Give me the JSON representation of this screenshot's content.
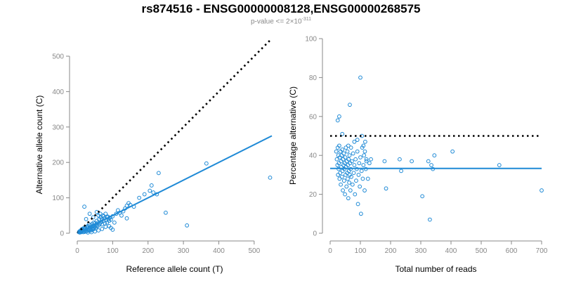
{
  "header": {
    "title": "rs874516 - ENSG00000008128,ENSG00000268575",
    "subtitle_prefix": "p-value <= 2×10",
    "subtitle_exp": "-311"
  },
  "colors": {
    "points": "#1f8ad6",
    "fit": "#1f8ad6",
    "reference": "#000000",
    "axis": "#888888"
  },
  "chart_data": [
    {
      "type": "scatter",
      "xlabel": "Reference allele count (T)",
      "ylabel": "Alternative allele count (C)",
      "xlim": [
        0,
        550
      ],
      "ylim": [
        0,
        500
      ],
      "xticks": [
        0,
        100,
        200,
        300,
        400,
        500
      ],
      "yticks": [
        0,
        100,
        200,
        300,
        400,
        500
      ],
      "reference_line": {
        "style": "dotted",
        "x": [
          0,
          550
        ],
        "y": [
          0,
          550
        ]
      },
      "fit_line": {
        "style": "solid",
        "x": [
          0,
          550
        ],
        "y": [
          0,
          275
        ]
      },
      "points": [
        [
          5,
          3
        ],
        [
          6,
          5
        ],
        [
          7,
          2
        ],
        [
          8,
          6
        ],
        [
          9,
          4
        ],
        [
          10,
          8
        ],
        [
          11,
          3
        ],
        [
          12,
          10
        ],
        [
          13,
          5
        ],
        [
          14,
          12
        ],
        [
          15,
          7
        ],
        [
          16,
          9
        ],
        [
          17,
          3
        ],
        [
          18,
          14
        ],
        [
          19,
          6
        ],
        [
          20,
          11
        ],
        [
          21,
          4
        ],
        [
          22,
          16
        ],
        [
          23,
          8
        ],
        [
          24,
          13
        ],
        [
          25,
          5
        ],
        [
          26,
          18
        ],
        [
          27,
          10
        ],
        [
          28,
          6
        ],
        [
          29,
          15
        ],
        [
          30,
          20
        ],
        [
          31,
          9
        ],
        [
          32,
          12
        ],
        [
          33,
          25
        ],
        [
          34,
          7
        ],
        [
          35,
          16
        ],
        [
          36,
          11
        ],
        [
          37,
          22
        ],
        [
          38,
          14
        ],
        [
          39,
          8
        ],
        [
          40,
          18
        ],
        [
          41,
          13
        ],
        [
          42,
          26
        ],
        [
          43,
          10
        ],
        [
          44,
          20
        ],
        [
          45,
          15
        ],
        [
          46,
          30
        ],
        [
          47,
          12
        ],
        [
          48,
          22
        ],
        [
          49,
          17
        ],
        [
          50,
          28
        ],
        [
          52,
          14
        ],
        [
          54,
          24
        ],
        [
          55,
          35
        ],
        [
          56,
          19
        ],
        [
          58,
          30
        ],
        [
          60,
          22
        ],
        [
          62,
          40
        ],
        [
          64,
          27
        ],
        [
          66,
          45
        ],
        [
          68,
          32
        ],
        [
          70,
          25
        ],
        [
          72,
          50
        ],
        [
          74,
          35
        ],
        [
          76,
          42
        ],
        [
          78,
          28
        ],
        [
          80,
          55
        ],
        [
          82,
          38
        ],
        [
          84,
          30
        ],
        [
          86,
          47
        ],
        [
          88,
          40
        ],
        [
          90,
          35
        ],
        [
          92,
          44
        ],
        [
          95,
          38
        ],
        [
          100,
          48
        ],
        [
          105,
          30
        ],
        [
          110,
          55
        ],
        [
          115,
          65
        ],
        [
          120,
          58
        ],
        [
          125,
          50
        ],
        [
          130,
          62
        ],
        [
          135,
          70
        ],
        [
          140,
          78
        ],
        [
          145,
          85
        ],
        [
          150,
          80
        ],
        [
          20,
          75
        ],
        [
          25,
          40
        ],
        [
          35,
          55
        ],
        [
          45,
          45
        ],
        [
          55,
          60
        ],
        [
          60,
          50
        ],
        [
          65,
          55
        ],
        [
          70,
          40
        ],
        [
          75,
          48
        ],
        [
          85,
          45
        ],
        [
          90,
          20
        ],
        [
          95,
          15
        ],
        [
          100,
          10
        ],
        [
          50,
          5
        ],
        [
          40,
          3
        ],
        [
          30,
          2
        ],
        [
          60,
          8
        ],
        [
          70,
          12
        ],
        [
          80,
          18
        ],
        [
          140,
          42
        ],
        [
          160,
          75
        ],
        [
          175,
          100
        ],
        [
          190,
          110
        ],
        [
          205,
          120
        ],
        [
          210,
          135
        ],
        [
          215,
          115
        ],
        [
          225,
          110
        ],
        [
          230,
          170
        ],
        [
          250,
          58
        ],
        [
          310,
          22
        ],
        [
          365,
          197
        ],
        [
          545,
          157
        ]
      ]
    },
    {
      "type": "scatter",
      "xlabel": "Total number of reads",
      "ylabel": "Percentage alternative (C)",
      "xlim": [
        0,
        700
      ],
      "ylim": [
        0,
        100
      ],
      "xticks": [
        0,
        100,
        200,
        300,
        400,
        500,
        600,
        700
      ],
      "yticks": [
        0,
        20,
        40,
        60,
        80,
        100
      ],
      "reference_line": {
        "style": "dotted",
        "x": [
          0,
          700
        ],
        "y": [
          50,
          50
        ]
      },
      "fit_line": {
        "style": "solid",
        "x": [
          0,
          700
        ],
        "y": [
          33.3,
          33.3
        ]
      },
      "points": [
        [
          20,
          42
        ],
        [
          22,
          38
        ],
        [
          24,
          35
        ],
        [
          25,
          44
        ],
        [
          26,
          30
        ],
        [
          27,
          40
        ],
        [
          28,
          33
        ],
        [
          29,
          36
        ],
        [
          30,
          45
        ],
        [
          31,
          28
        ],
        [
          32,
          39
        ],
        [
          33,
          31
        ],
        [
          34,
          42
        ],
        [
          35,
          25
        ],
        [
          36,
          37
        ],
        [
          37,
          34
        ],
        [
          38,
          40
        ],
        [
          39,
          29
        ],
        [
          40,
          43
        ],
        [
          41,
          32
        ],
        [
          42,
          22
        ],
        [
          43,
          38
        ],
        [
          44,
          35
        ],
        [
          45,
          41
        ],
        [
          46,
          27
        ],
        [
          47,
          33
        ],
        [
          48,
          36
        ],
        [
          49,
          20
        ],
        [
          50,
          39
        ],
        [
          51,
          30
        ],
        [
          52,
          44
        ],
        [
          53,
          34
        ],
        [
          54,
          24
        ],
        [
          55,
          37
        ],
        [
          56,
          31
        ],
        [
          57,
          42
        ],
        [
          58,
          28
        ],
        [
          59,
          35
        ],
        [
          60,
          18
        ],
        [
          61,
          38
        ],
        [
          62,
          32
        ],
        [
          63,
          26
        ],
        [
          64,
          40
        ],
        [
          65,
          30
        ],
        [
          66,
          36
        ],
        [
          67,
          22
        ],
        [
          68,
          33
        ],
        [
          69,
          44
        ],
        [
          70,
          29
        ],
        [
          72,
          37
        ],
        [
          74,
          25
        ],
        [
          76,
          41
        ],
        [
          78,
          31
        ],
        [
          80,
          35
        ],
        [
          82,
          20
        ],
        [
          84,
          38
        ],
        [
          86,
          27
        ],
        [
          88,
          33
        ],
        [
          90,
          42
        ],
        [
          92,
          15
        ],
        [
          94,
          30
        ],
        [
          96,
          36
        ],
        [
          98,
          24
        ],
        [
          100,
          39
        ],
        [
          102,
          10
        ],
        [
          104,
          32
        ],
        [
          106,
          44
        ],
        [
          108,
          28
        ],
        [
          110,
          35
        ],
        [
          112,
          40
        ],
        [
          114,
          22
        ],
        [
          116,
          47
        ],
        [
          118,
          33
        ],
        [
          120,
          37
        ],
        [
          125,
          28
        ],
        [
          130,
          36
        ],
        [
          135,
          38
        ],
        [
          25,
          58
        ],
        [
          30,
          60
        ],
        [
          40,
          51
        ],
        [
          60,
          45
        ],
        [
          65,
          66
        ],
        [
          80,
          47
        ],
        [
          90,
          48
        ],
        [
          100,
          80
        ],
        [
          105,
          50
        ],
        [
          110,
          45
        ],
        [
          115,
          42
        ],
        [
          120,
          38
        ],
        [
          180,
          37
        ],
        [
          185,
          23
        ],
        [
          230,
          38
        ],
        [
          235,
          32
        ],
        [
          270,
          37
        ],
        [
          305,
          19
        ],
        [
          325,
          37
        ],
        [
          330,
          7
        ],
        [
          335,
          35
        ],
        [
          340,
          33
        ],
        [
          345,
          40
        ],
        [
          405,
          42
        ],
        [
          560,
          35
        ],
        [
          700,
          22
        ]
      ]
    }
  ]
}
